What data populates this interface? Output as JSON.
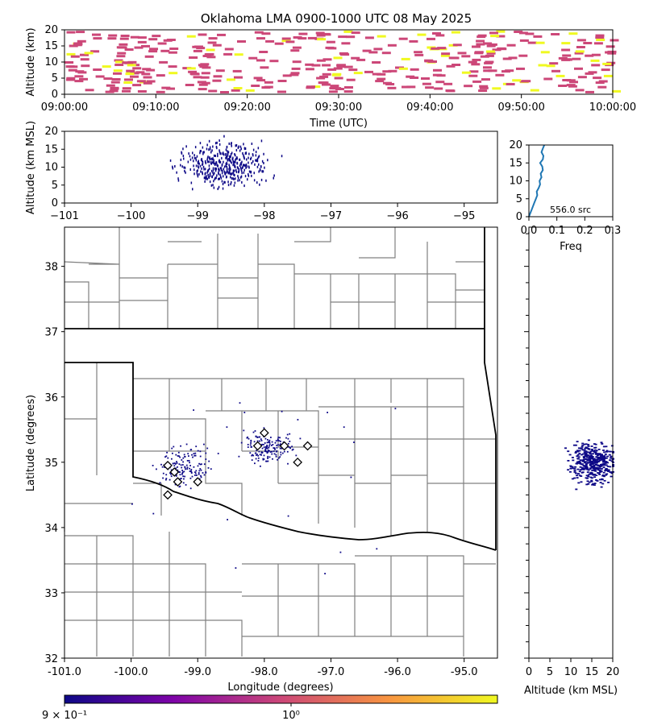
{
  "title": "Oklahoma LMA 0900-1000 UTC 08 May 2025",
  "chart_data": [
    {
      "panel": "time-height",
      "type": "heatmap",
      "ylabel": "Altitude (km)",
      "xlabel": "Time (UTC)",
      "ylim": [
        0,
        20
      ],
      "yticks": [
        "0",
        "5",
        "10",
        "15",
        "20"
      ],
      "xticks": [
        "09:00:00",
        "09:10:00",
        "09:20:00",
        "09:30:00",
        "09:40:00",
        "09:50:00",
        "10:00:00"
      ],
      "xlim_minutes": [
        0,
        60
      ]
    },
    {
      "panel": "longitude-altitude",
      "type": "scatter",
      "ylabel": "Altitude (km MSL)",
      "xlim": [
        -101,
        -94.5
      ],
      "ylim": [
        0,
        20
      ],
      "xticks": [
        "−101",
        "−100",
        "−99",
        "−98",
        "−97",
        "−96",
        "−95"
      ],
      "yticks": [
        "0",
        "5",
        "10",
        "15",
        "20"
      ]
    },
    {
      "panel": "altitude-histogram",
      "type": "line",
      "xlabel": "Freq",
      "xlim": [
        0,
        0.3
      ],
      "ylim": [
        0,
        20
      ],
      "xticks": [
        "0.0",
        "0.1",
        "0.2",
        "0.3"
      ],
      "yticks": [
        "0",
        "5",
        "10",
        "15",
        "20"
      ],
      "annotation": "556.0 src",
      "altitude_km": [
        0,
        1,
        2,
        3,
        4,
        5,
        6,
        7,
        8,
        9,
        10,
        11,
        12,
        13,
        14,
        15,
        16,
        17,
        18,
        19,
        20
      ],
      "frequency": [
        0.0,
        0.005,
        0.01,
        0.015,
        0.02,
        0.025,
        0.03,
        0.028,
        0.035,
        0.04,
        0.038,
        0.045,
        0.042,
        0.05,
        0.048,
        0.04,
        0.05,
        0.052,
        0.045,
        0.05,
        0.055
      ]
    },
    {
      "panel": "plan-view",
      "type": "scatter",
      "xlabel": "Longitude (degrees)",
      "ylabel": "Latitude (degrees)",
      "xlim": [
        -101.0,
        -94.5
      ],
      "ylim": [
        32.0,
        38.6
      ],
      "xticks": [
        "-101.0",
        "-100.0",
        "-99.0",
        "-98.0",
        "-97.0",
        "-96.0",
        "-95.0"
      ],
      "yticks": [
        "32",
        "33",
        "34",
        "35",
        "36",
        "37",
        "38"
      ],
      "stations": [
        [
          -99.45,
          34.95
        ],
        [
          -99.35,
          34.85
        ],
        [
          -99.3,
          34.7
        ],
        [
          -99.0,
          34.7
        ],
        [
          -99.45,
          34.5
        ],
        [
          -98.0,
          35.45
        ],
        [
          -98.1,
          35.25
        ],
        [
          -97.7,
          35.25
        ],
        [
          -97.35,
          35.25
        ],
        [
          -97.5,
          35.0
        ]
      ]
    },
    {
      "panel": "altitude-latitude",
      "type": "scatter",
      "xlabel": "Altitude (km MSL)",
      "xlim": [
        0,
        20
      ],
      "xticks": [
        "0",
        "5",
        "10",
        "15",
        "20"
      ]
    },
    {
      "panel": "colorbar",
      "type": "colorbar",
      "scale": "log",
      "ticks": [
        "9 × 10⁻¹",
        "10⁰"
      ],
      "colors": [
        "#0d0887",
        "#7e03a8",
        "#cc4778",
        "#f89540",
        "#f0f921"
      ]
    }
  ]
}
